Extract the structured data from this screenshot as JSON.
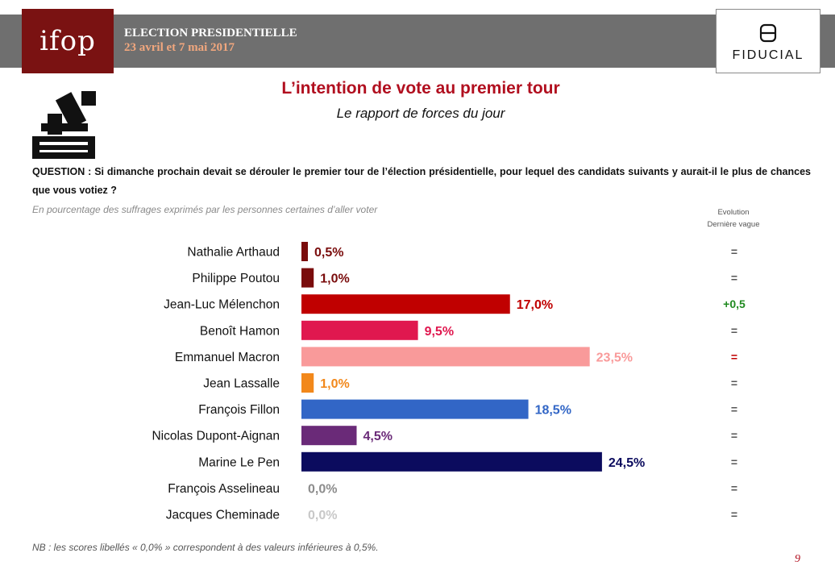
{
  "header": {
    "logo": "ifop",
    "election_title": "ELECTION PRESIDENTIELLE",
    "election_dates": "23 avril et 7 mai 2017",
    "partner": "FIDUCIAL"
  },
  "title": "L’intention de vote au premier tour",
  "subtitle": "Le rapport de forces du jour",
  "question_label": "QUESTION :",
  "question_text": "Si dimanche prochain devait se dérouler le premier tour de l’élection présidentielle, pour lequel des candidats suivants y aurait-il le plus de chances que vous votiez ?",
  "base_note": "En pourcentage des suffrages exprimés par les personnes certaines d’aller voter",
  "evolution_header": [
    "Evolution",
    "Dernière vague"
  ],
  "chart_data": {
    "type": "bar",
    "orientation": "horizontal",
    "unit": "%",
    "xlim": [
      0,
      25
    ],
    "categories": [
      "Nathalie Arthaud",
      "Philippe Poutou",
      "Jean-Luc Mélenchon",
      "Benoît Hamon",
      "Emmanuel Macron",
      "Jean Lassalle",
      "François Fillon",
      "Nicolas Dupont-Aignan",
      "Marine Le Pen",
      "François Asselineau",
      "Jacques Cheminade"
    ],
    "values": [
      0.5,
      1.0,
      17.0,
      9.5,
      23.5,
      1.0,
      18.5,
      4.5,
      24.5,
      0.0,
      0.0
    ],
    "value_labels": [
      "0,5%",
      "1,0%",
      "17,0%",
      "9,5%",
      "23,5%",
      "1,0%",
      "18,5%",
      "4,5%",
      "24,5%",
      "0,0%",
      "0,0%"
    ],
    "colors": [
      "#7a0c0c",
      "#7a0c0c",
      "#c00000",
      "#e0184f",
      "#f99a9a",
      "#f2881b",
      "#3266c6",
      "#6a2a78",
      "#0b0b5e",
      "#8c8c8c",
      "#c8c8c8"
    ],
    "evolution": [
      "=",
      "=",
      "+0,5",
      "=",
      "=",
      "=",
      "=",
      "=",
      "=",
      "=",
      "="
    ],
    "evolution_colors": [
      "#555555",
      "#555555",
      "#1f8a1f",
      "#555555",
      "#c00000",
      "#555555",
      "#555555",
      "#555555",
      "#555555",
      "#555555",
      "#555555"
    ]
  },
  "footnote": "NB : les scores libellés « 0,0% » correspondent à des valeurs inférieures à 0,5%.",
  "page_number": "9"
}
